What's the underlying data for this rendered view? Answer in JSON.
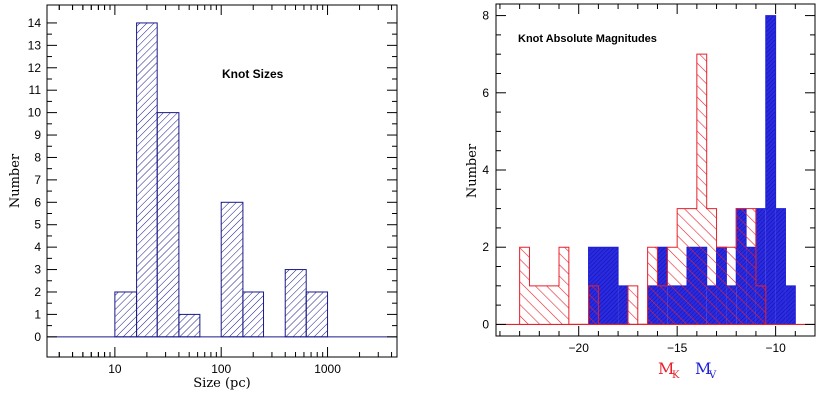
{
  "chart_data": [
    {
      "type": "histogram",
      "annotation": "Knot Sizes",
      "xlabel": "Size (pc)",
      "ylabel": "Number",
      "xscale": "log",
      "xlim": [
        2.3,
        4500
      ],
      "ylim": [
        -0.9,
        14.8
      ],
      "xticks_labeled": [
        {
          "v": 10,
          "label": "10"
        },
        {
          "v": 100,
          "label": "100"
        },
        {
          "v": 1000,
          "label": "1000"
        }
      ],
      "yticks": [
        0,
        1,
        2,
        3,
        4,
        5,
        6,
        7,
        8,
        9,
        10,
        11,
        12,
        13,
        14
      ],
      "color": "#1a1a8c",
      "bins": [
        {
          "x0": 10,
          "x1": 16,
          "count": 2
        },
        {
          "x0": 16,
          "x1": 25,
          "count": 14
        },
        {
          "x0": 25,
          "x1": 40,
          "count": 10
        },
        {
          "x0": 40,
          "x1": 63,
          "count": 1
        },
        {
          "x0": 63,
          "x1": 100,
          "count": 0
        },
        {
          "x0": 100,
          "x1": 160,
          "count": 6
        },
        {
          "x0": 160,
          "x1": 250,
          "count": 2
        },
        {
          "x0": 250,
          "x1": 400,
          "count": 0
        },
        {
          "x0": 400,
          "x1": 630,
          "count": 3
        },
        {
          "x0": 630,
          "x1": 1000,
          "count": 2
        }
      ]
    },
    {
      "type": "histogram",
      "annotation": "Knot Absolute Magnitudes",
      "ylabel": "Number",
      "xlim": [
        -24.2,
        -8.0
      ],
      "ylim": [
        -0.3,
        8.3
      ],
      "xticks_labeled": [
        {
          "v": -20,
          "label": "−20"
        },
        {
          "v": -15,
          "label": "−15"
        },
        {
          "v": -10,
          "label": "−10"
        }
      ],
      "yticks_labeled": [
        0,
        2,
        4,
        6,
        8
      ],
      "series": [
        {
          "name_main": "M",
          "name_sub": "K",
          "color": "#e8202a",
          "fill": "hatch",
          "bins": [
            {
              "x0": -23.0,
              "x1": -22.5,
              "count": 2
            },
            {
              "x0": -22.5,
              "x1": -21.0,
              "count": 1
            },
            {
              "x0": -21.0,
              "x1": -20.5,
              "count": 2
            },
            {
              "x0": -20.5,
              "x1": -19.5,
              "count": 0
            },
            {
              "x0": -19.5,
              "x1": -19.0,
              "count": 1
            },
            {
              "x0": -19.0,
              "x1": -17.5,
              "count": 0
            },
            {
              "x0": -17.5,
              "x1": -17.0,
              "count": 1
            },
            {
              "x0": -17.0,
              "x1": -16.5,
              "count": 0
            },
            {
              "x0": -16.5,
              "x1": -16.0,
              "count": 2
            },
            {
              "x0": -16.0,
              "x1": -15.5,
              "count": 1
            },
            {
              "x0": -15.5,
              "x1": -15.0,
              "count": 2
            },
            {
              "x0": -15.0,
              "x1": -14.0,
              "count": 3
            },
            {
              "x0": -14.0,
              "x1": -13.5,
              "count": 7
            },
            {
              "x0": -13.5,
              "x1": -13.0,
              "count": 3
            },
            {
              "x0": -13.0,
              "x1": -12.0,
              "count": 2
            },
            {
              "x0": -12.0,
              "x1": -11.5,
              "count": 3
            },
            {
              "x0": -11.5,
              "x1": -11.0,
              "count": 3
            },
            {
              "x0": -11.0,
              "x1": -10.5,
              "count": 1
            }
          ]
        },
        {
          "name_main": "M",
          "name_sub": "V",
          "color": "#1e1ed8",
          "fill": "solid",
          "bins": [
            {
              "x0": -19.5,
              "x1": -18.0,
              "count": 2
            },
            {
              "x0": -18.0,
              "x1": -17.5,
              "count": 1
            },
            {
              "x0": -17.5,
              "x1": -16.5,
              "count": 0
            },
            {
              "x0": -16.5,
              "x1": -16.0,
              "count": 1
            },
            {
              "x0": -16.0,
              "x1": -15.5,
              "count": 2
            },
            {
              "x0": -15.5,
              "x1": -14.5,
              "count": 1
            },
            {
              "x0": -14.5,
              "x1": -13.5,
              "count": 2
            },
            {
              "x0": -13.5,
              "x1": -13.0,
              "count": 1
            },
            {
              "x0": -13.0,
              "x1": -12.5,
              "count": 2
            },
            {
              "x0": -12.5,
              "x1": -12.0,
              "count": 1
            },
            {
              "x0": -12.0,
              "x1": -11.5,
              "count": 3
            },
            {
              "x0": -11.5,
              "x1": -11.0,
              "count": 2
            },
            {
              "x0": -11.0,
              "x1": -10.5,
              "count": 3
            },
            {
              "x0": -10.5,
              "x1": -10.0,
              "count": 8
            },
            {
              "x0": -10.0,
              "x1": -9.5,
              "count": 3
            },
            {
              "x0": -9.5,
              "x1": -9.0,
              "count": 1
            }
          ]
        }
      ]
    }
  ]
}
